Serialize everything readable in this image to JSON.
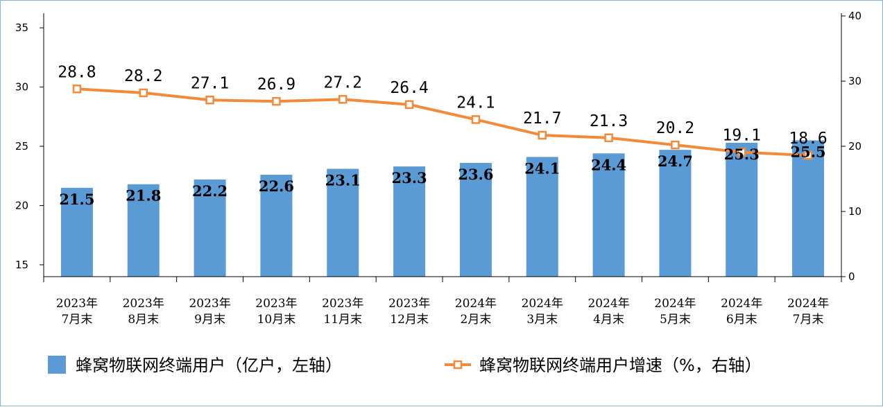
{
  "chart_data": {
    "type": "bar+line",
    "title": "",
    "categories": [
      [
        "2023年",
        "7月末"
      ],
      [
        "2023年",
        "8月末"
      ],
      [
        "2023年",
        "9月末"
      ],
      [
        "2023年",
        "10月末"
      ],
      [
        "2023年",
        "11月末"
      ],
      [
        "2023年",
        "12月末"
      ],
      [
        "2024年",
        "2月末"
      ],
      [
        "2024年",
        "3月末"
      ],
      [
        "2024年",
        "4月末"
      ],
      [
        "2024年",
        "5月末"
      ],
      [
        "2024年",
        "6月末"
      ],
      [
        "2024年",
        "7月末"
      ]
    ],
    "series": [
      {
        "name": "蜂窝物联网终端用户（亿户，左轴）",
        "type": "bar",
        "axis": "left",
        "color": "#5b9bd5",
        "values": [
          21.5,
          21.8,
          22.2,
          22.6,
          23.1,
          23.3,
          23.6,
          24.1,
          24.4,
          24.7,
          25.3,
          25.5
        ],
        "labels": [
          "21.5",
          "21.8",
          "22.2",
          "22.6",
          "23.1",
          "23.3",
          "23.6",
          "24.1",
          "24.4",
          "24.7",
          "25.3",
          "25.5"
        ]
      },
      {
        "name": "蜂窝物联网终端用户增速（%，右轴）",
        "type": "line",
        "axis": "right",
        "color": "#f28a3a",
        "marker": "hollow-square",
        "values": [
          28.8,
          28.2,
          27.1,
          26.9,
          27.2,
          26.4,
          24.1,
          21.7,
          21.3,
          20.2,
          19.1,
          18.6
        ],
        "labels": [
          "28.8",
          "28.2",
          "27.1",
          "26.9",
          "27.2",
          "26.4",
          "24.1",
          "21.7",
          "21.3",
          "20.2",
          "19.1",
          "18.6"
        ]
      }
    ],
    "y_left": {
      "min": 14,
      "max": 36,
      "ticks": [
        15,
        20,
        25,
        30,
        35
      ],
      "tick_labels": [
        "15",
        "20",
        "25",
        "30",
        "35"
      ]
    },
    "y_right": {
      "min": 0,
      "max": 40,
      "ticks": [
        0,
        10,
        20,
        30,
        40
      ],
      "tick_labels": [
        "0",
        "10",
        "20",
        "30",
        "40"
      ]
    },
    "legend_position": "bottom",
    "grid": false
  }
}
